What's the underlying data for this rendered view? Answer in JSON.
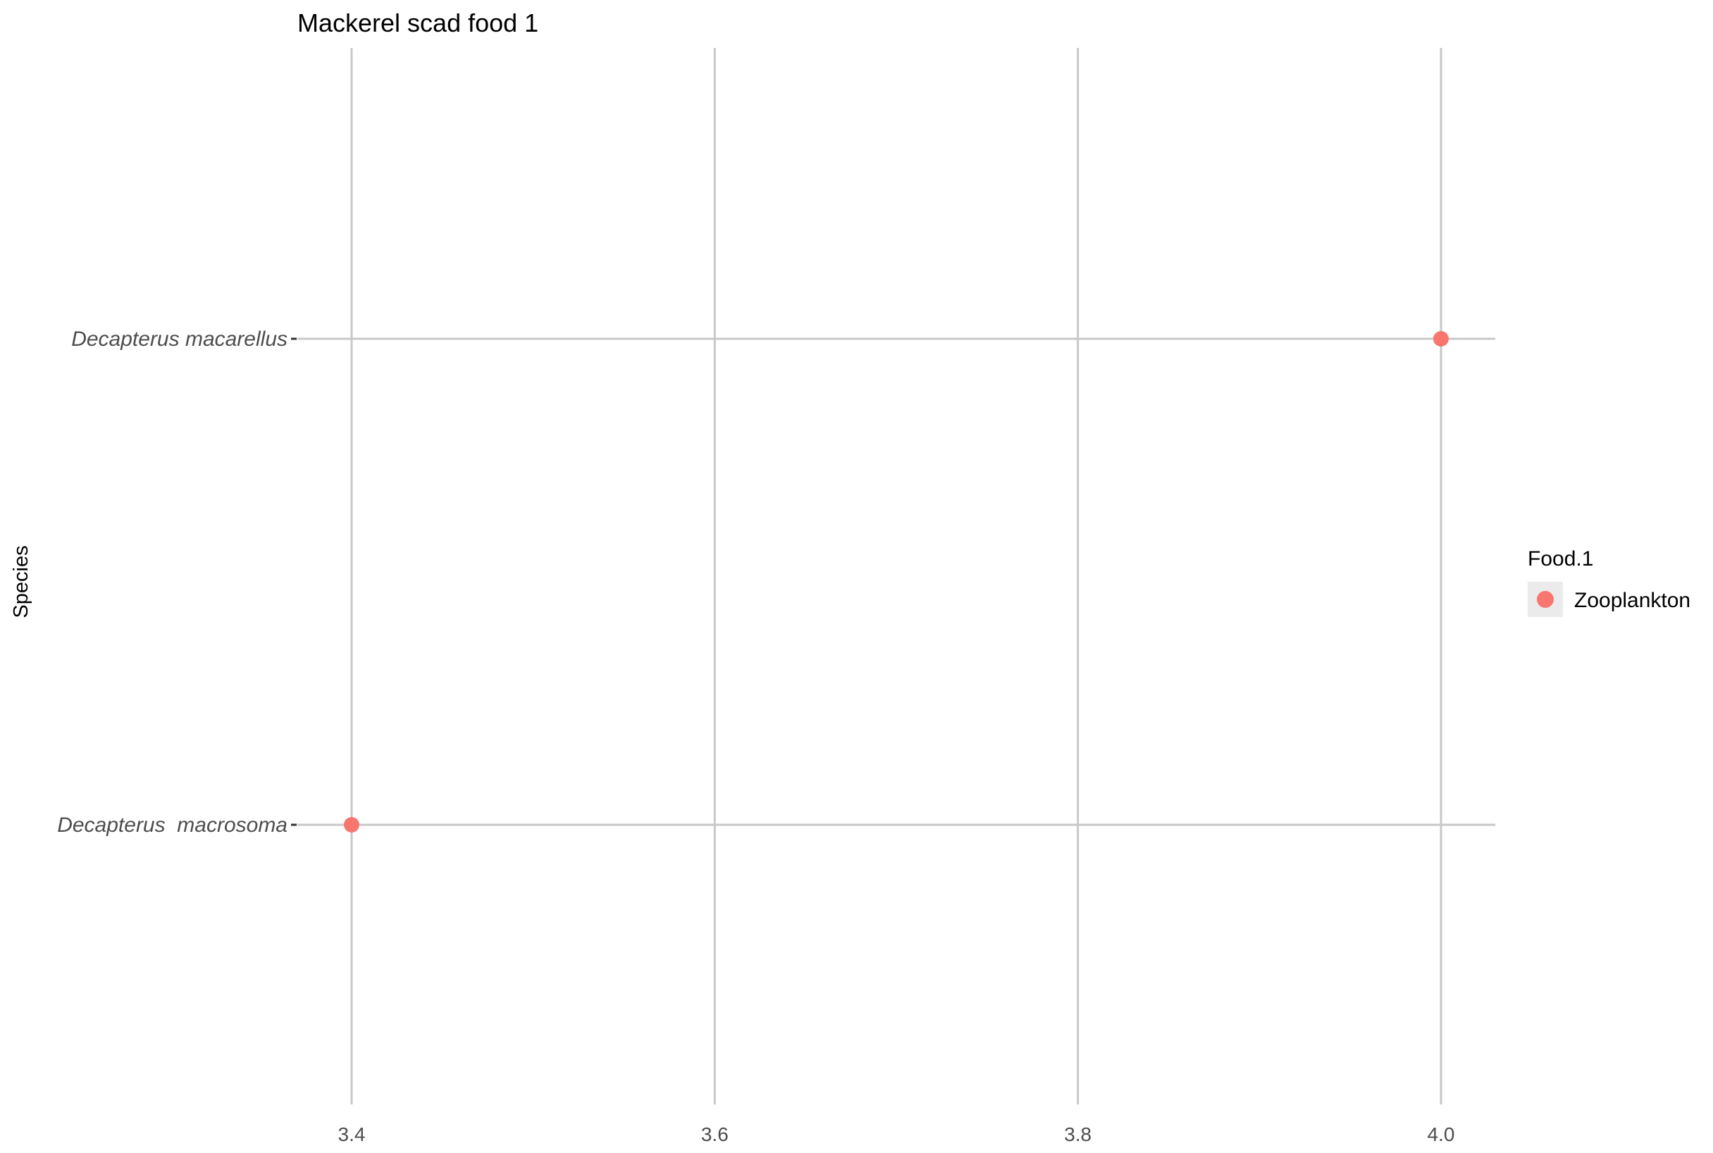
{
  "chart_data": {
    "type": "scatter",
    "title": "Mackerel scad food 1",
    "xlabel": "",
    "ylabel": "Species",
    "xlim": [
      3.25,
      4.03
    ],
    "x_ticks": [
      "3.4",
      "3.6",
      "3.8",
      "4.0"
    ],
    "x_tick_values": [
      3.4,
      3.6,
      3.8,
      4.0
    ],
    "categories": [
      "Decapterus  macrosoma",
      "Decapterus macarellus"
    ],
    "series": [
      {
        "name": "Zooplankton",
        "color": "#F8766D",
        "points": [
          {
            "x": 3.4,
            "y": "Decapterus  macrosoma"
          },
          {
            "x": 4.0,
            "y": "Decapterus macarellus"
          }
        ]
      }
    ],
    "grid": true,
    "legend": {
      "title": "Food.1",
      "placement": "right",
      "entries": [
        "Zooplankton"
      ]
    }
  }
}
